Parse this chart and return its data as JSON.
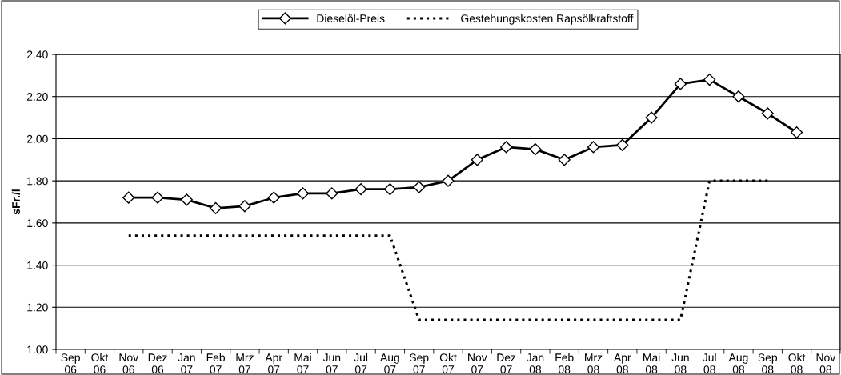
{
  "chart_data": {
    "type": "line",
    "ylabel": "sFr./l",
    "categories": [
      "Sep\n06",
      "Okt\n06",
      "Nov\n06",
      "Dez\n06",
      "Jan\n07",
      "Feb\n07",
      "Mrz\n07",
      "Apr\n07",
      "Mai\n07",
      "Jun\n07",
      "Jul\n07",
      "Aug\n07",
      "Sep\n07",
      "Okt\n07",
      "Nov\n07",
      "Dez\n07",
      "Jan\n08",
      "Feb\n08",
      "Mrz\n08",
      "Apr\n08",
      "Mai\n08",
      "Jun\n08",
      "Jul\n08",
      "Aug\n08",
      "Sep\n08",
      "Okt\n08",
      "Nov\n08"
    ],
    "series": [
      {
        "name": "Dieselöl-Preis",
        "color": "#000000",
        "marker": "diamond",
        "line_style": "solid",
        "values": [
          null,
          null,
          1.72,
          1.72,
          1.71,
          1.67,
          1.68,
          1.72,
          1.74,
          1.74,
          1.76,
          1.76,
          1.77,
          1.8,
          1.9,
          1.96,
          1.95,
          1.9,
          1.96,
          1.97,
          2.1,
          2.26,
          2.28,
          2.2,
          2.12,
          2.03,
          null
        ]
      },
      {
        "name": "Gestehungskosten Rapsölkraftstoff",
        "color": "#000000",
        "marker": "none",
        "line_style": "dotted",
        "values": [
          null,
          null,
          1.54,
          1.54,
          1.54,
          1.54,
          1.54,
          1.54,
          1.54,
          1.54,
          1.54,
          1.54,
          1.14,
          1.14,
          1.14,
          1.14,
          1.14,
          1.14,
          1.14,
          1.14,
          1.14,
          1.14,
          1.8,
          1.8,
          1.8,
          null,
          null
        ]
      }
    ],
    "ylim": [
      1.0,
      2.4
    ],
    "yticks": [
      {
        "value": 1.0,
        "label": "1.00"
      },
      {
        "value": 1.2,
        "label": "1.20"
      },
      {
        "value": 1.4,
        "label": "1.40"
      },
      {
        "value": 1.6,
        "label": "1.60"
      },
      {
        "value": 1.8,
        "label": "1.80"
      },
      {
        "value": 2.0,
        "label": "2.00"
      },
      {
        "value": 2.2,
        "label": "2.20"
      },
      {
        "value": 2.4,
        "label": "2.40"
      }
    ],
    "grid": "y",
    "legend": "top"
  }
}
